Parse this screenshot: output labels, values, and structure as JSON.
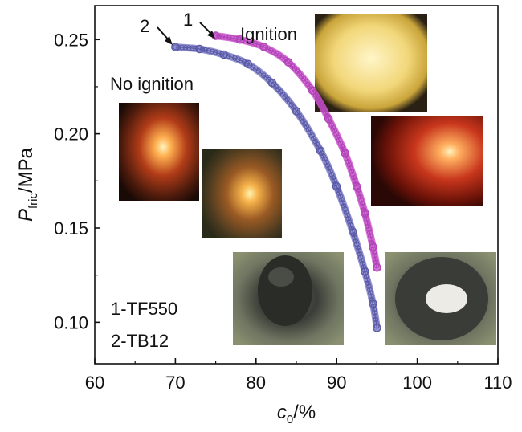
{
  "chart_data": {
    "type": "line",
    "xlabel": {
      "main": "c",
      "sub": "0",
      "unit": "/%"
    },
    "ylabel": {
      "main": "P",
      "sub": "fric",
      "unit": "/MPa"
    },
    "xlim": [
      60,
      110
    ],
    "ylim": [
      0.078,
      0.268
    ],
    "xticks": [
      "60",
      "70",
      "80",
      "90",
      "100",
      "110"
    ],
    "yticks": [
      "0.10",
      "0.15",
      "0.20",
      "0.25"
    ],
    "series": [
      {
        "name": "1",
        "color": "#cc55cc",
        "marker_color": "#b044b8",
        "x": [
          75,
          78,
          81,
          84,
          87,
          89,
          91,
          92.5,
          93.5,
          94.5,
          95
        ],
        "y": [
          0.252,
          0.25,
          0.246,
          0.238,
          0.223,
          0.208,
          0.19,
          0.172,
          0.158,
          0.14,
          0.129
        ]
      },
      {
        "name": "2",
        "color": "#8080c8",
        "marker_color": "#5a5aa8",
        "x": [
          70,
          73,
          76,
          79,
          82,
          85,
          88,
          90,
          92,
          93.5,
          94.5,
          95
        ],
        "y": [
          0.246,
          0.245,
          0.242,
          0.237,
          0.227,
          0.212,
          0.191,
          0.172,
          0.148,
          0.127,
          0.11,
          0.097
        ]
      }
    ],
    "annotations": {
      "ignition": "Ignition",
      "no_ignition": "No ignition",
      "legend_line1": "1-TF550",
      "legend_line2": "2-TB12",
      "arrow1_label": "1",
      "arrow2_label": "2"
    },
    "photos": [
      {
        "name": "ignition-bright-photo",
        "tone": "yellow"
      },
      {
        "name": "ignition-red-photo",
        "tone": "red"
      },
      {
        "name": "no-ignition-photo-1",
        "tone": "orange"
      },
      {
        "name": "no-ignition-photo-2",
        "tone": "orange-green"
      },
      {
        "name": "burnt-sample-photo-1",
        "tone": "grey"
      },
      {
        "name": "burnt-sample-photo-2",
        "tone": "grey"
      }
    ]
  }
}
